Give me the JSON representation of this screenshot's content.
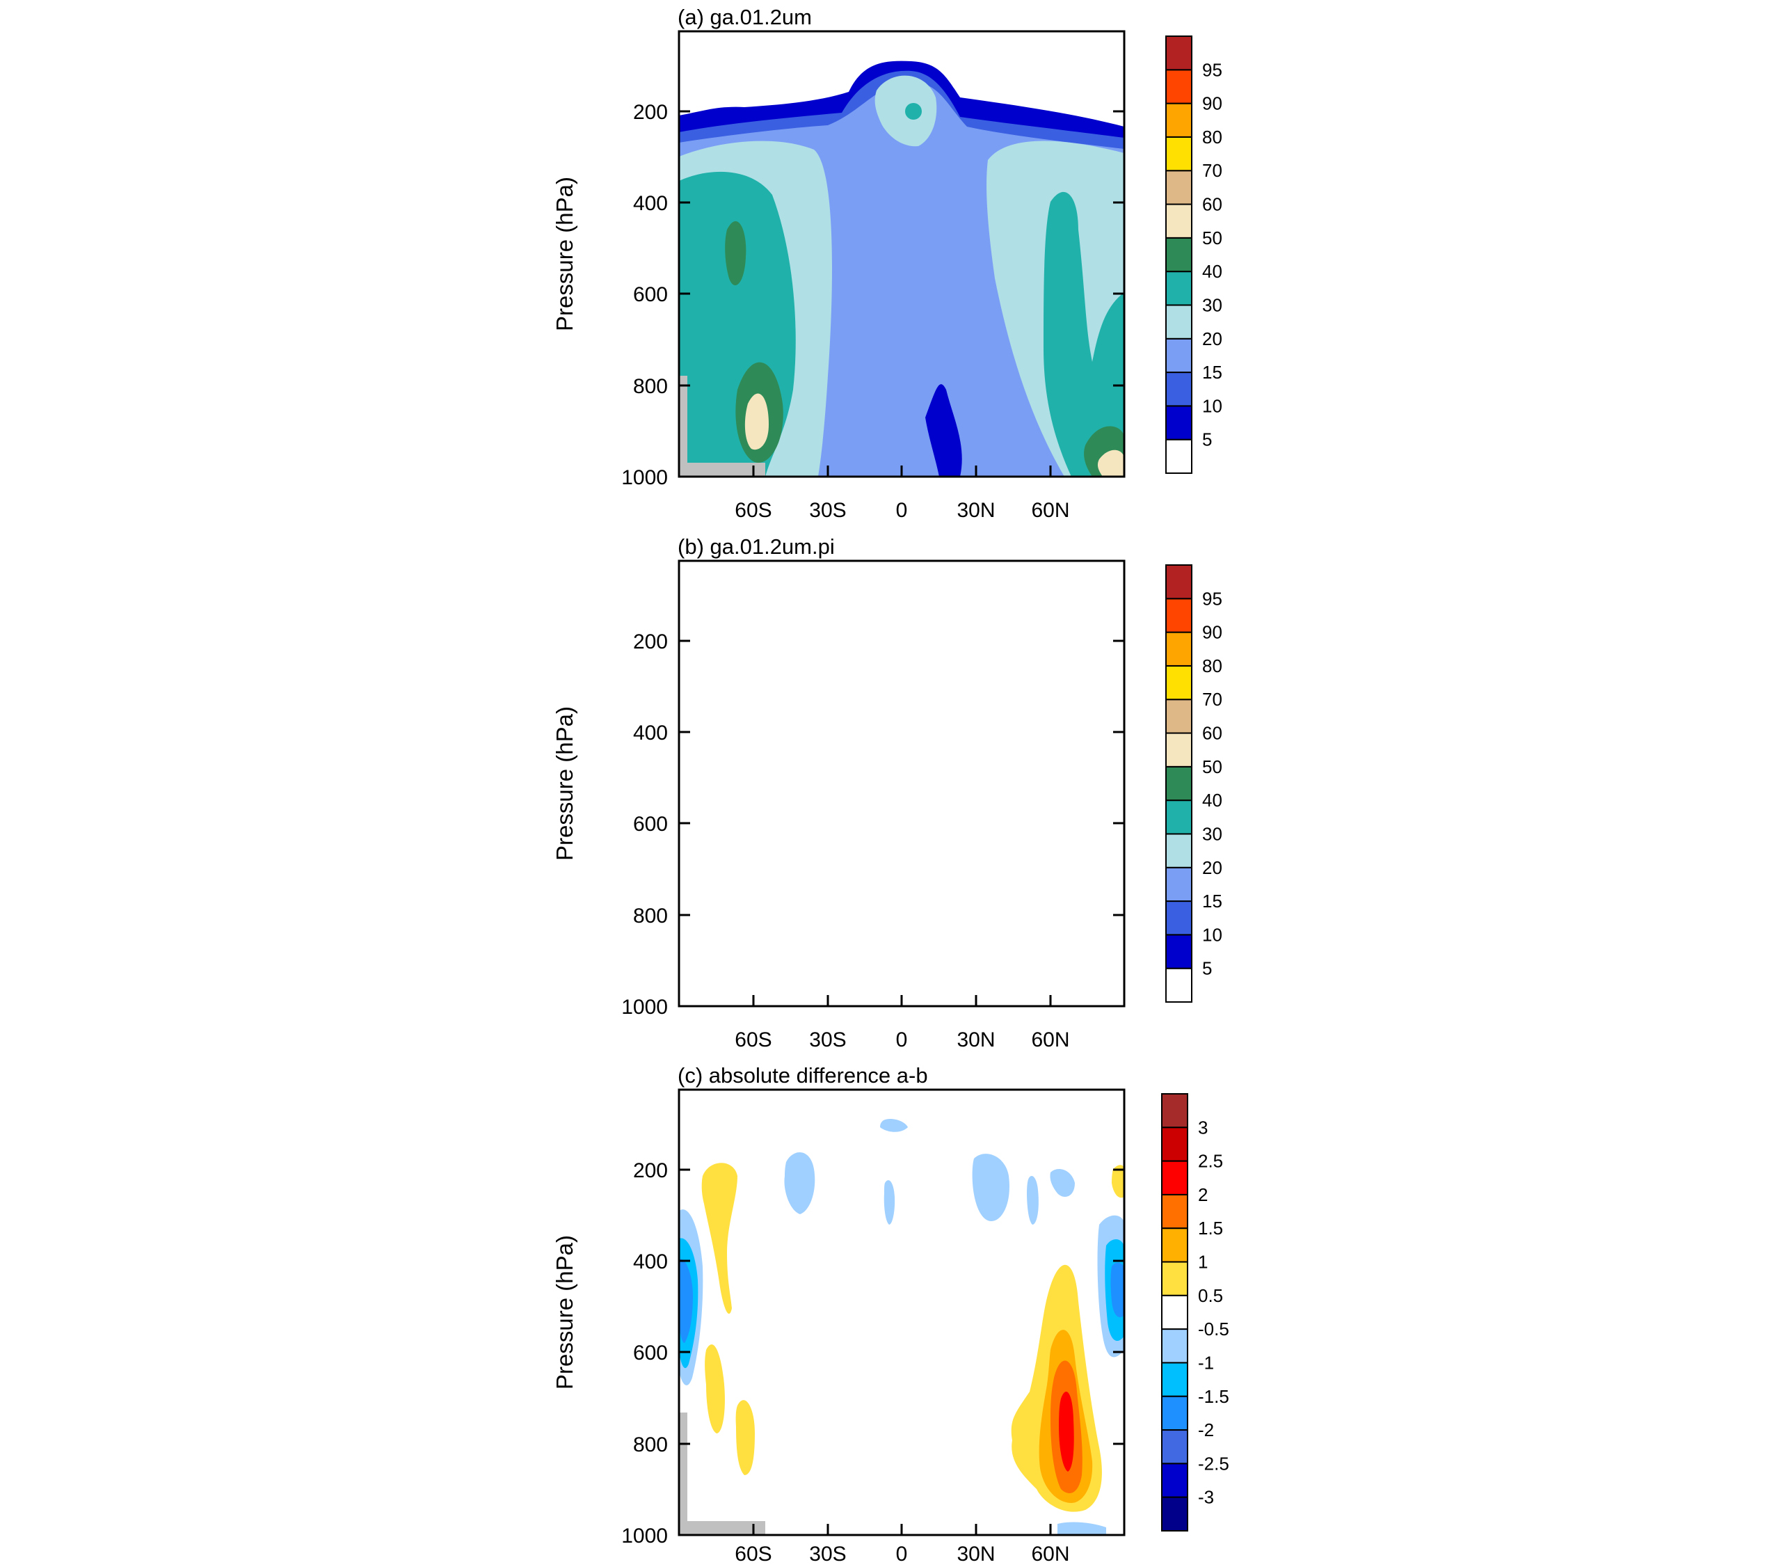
{
  "chart_data": [
    {
      "type": "heatmap",
      "panel": "a",
      "title": "(a) ga.01.2um",
      "ylabel": "Pressure (hPa)",
      "xlabel": "",
      "xlim": [
        -90,
        90
      ],
      "ylim": [
        1000,
        0
      ],
      "x_ticks": [
        -60,
        -30,
        0,
        30,
        60
      ],
      "x_tick_labels": [
        "60S",
        "30S",
        "0",
        "30N",
        "60N"
      ],
      "y_ticks": [
        200,
        400,
        600,
        800,
        1000
      ],
      "y_tick_labels": [
        "200",
        "400",
        "600",
        "800",
        "1000"
      ],
      "colorbar": {
        "labels": [
          "5",
          "10",
          "15",
          "20",
          "30",
          "40",
          "50",
          "60",
          "70",
          "80",
          "90",
          "95"
        ],
        "colors": [
          "#ffffff",
          "#0000cd",
          "#3a5fe0",
          "#7b9ef5",
          "#b0dfe6",
          "#20b2aa",
          "#2e8b57",
          "#f5e6c0",
          "#deb887",
          "#ffe000",
          "#ffa500",
          "#ff4500",
          "#b22222"
        ]
      }
    },
    {
      "type": "heatmap",
      "panel": "b",
      "title": "(b) ga.01.2um.pi",
      "ylabel": "Pressure (hPa)",
      "xlabel": "",
      "xlim": [
        -90,
        90
      ],
      "ylim": [
        1000,
        0
      ],
      "x_ticks": [
        -60,
        -30,
        0,
        30,
        60
      ],
      "x_tick_labels": [
        "60S",
        "30S",
        "0",
        "30N",
        "60N"
      ],
      "y_ticks": [
        200,
        400,
        600,
        800,
        1000
      ],
      "y_tick_labels": [
        "200",
        "400",
        "600",
        "800",
        "1000"
      ],
      "colorbar": {
        "labels": [
          "5",
          "10",
          "15",
          "20",
          "30",
          "40",
          "50",
          "60",
          "70",
          "80",
          "90",
          "95"
        ],
        "colors": [
          "#ffffff",
          "#0000cd",
          "#3a5fe0",
          "#7b9ef5",
          "#b0dfe6",
          "#20b2aa",
          "#2e8b57",
          "#f5e6c0",
          "#deb887",
          "#ffe000",
          "#ffa500",
          "#ff4500",
          "#b22222"
        ]
      }
    },
    {
      "type": "heatmap",
      "panel": "c",
      "title": "(c) absolute difference a-b",
      "ylabel": "Pressure (hPa)",
      "xlabel": "",
      "xlim": [
        -90,
        90
      ],
      "ylim": [
        1000,
        0
      ],
      "x_ticks": [
        -60,
        -30,
        0,
        30,
        60
      ],
      "x_tick_labels": [
        "60S",
        "30S",
        "0",
        "30N",
        "60N"
      ],
      "y_ticks": [
        200,
        400,
        600,
        800,
        1000
      ],
      "y_tick_labels": [
        "200",
        "400",
        "600",
        "800",
        "1000"
      ],
      "colorbar": {
        "labels": [
          "3",
          "2.5",
          "2",
          "1.5",
          "1",
          "0.5",
          "-0.5",
          "-1",
          "-1.5",
          "-2",
          "-2.5",
          "-3"
        ],
        "colors": [
          "#a52a2a",
          "#cc0000",
          "#ff0000",
          "#ff7000",
          "#ffb000",
          "#ffe040",
          "#ffffff",
          "#a0d0ff",
          "#00bfff",
          "#1e90ff",
          "#4169e1",
          "#0000cd",
          "#00008b"
        ]
      }
    }
  ]
}
